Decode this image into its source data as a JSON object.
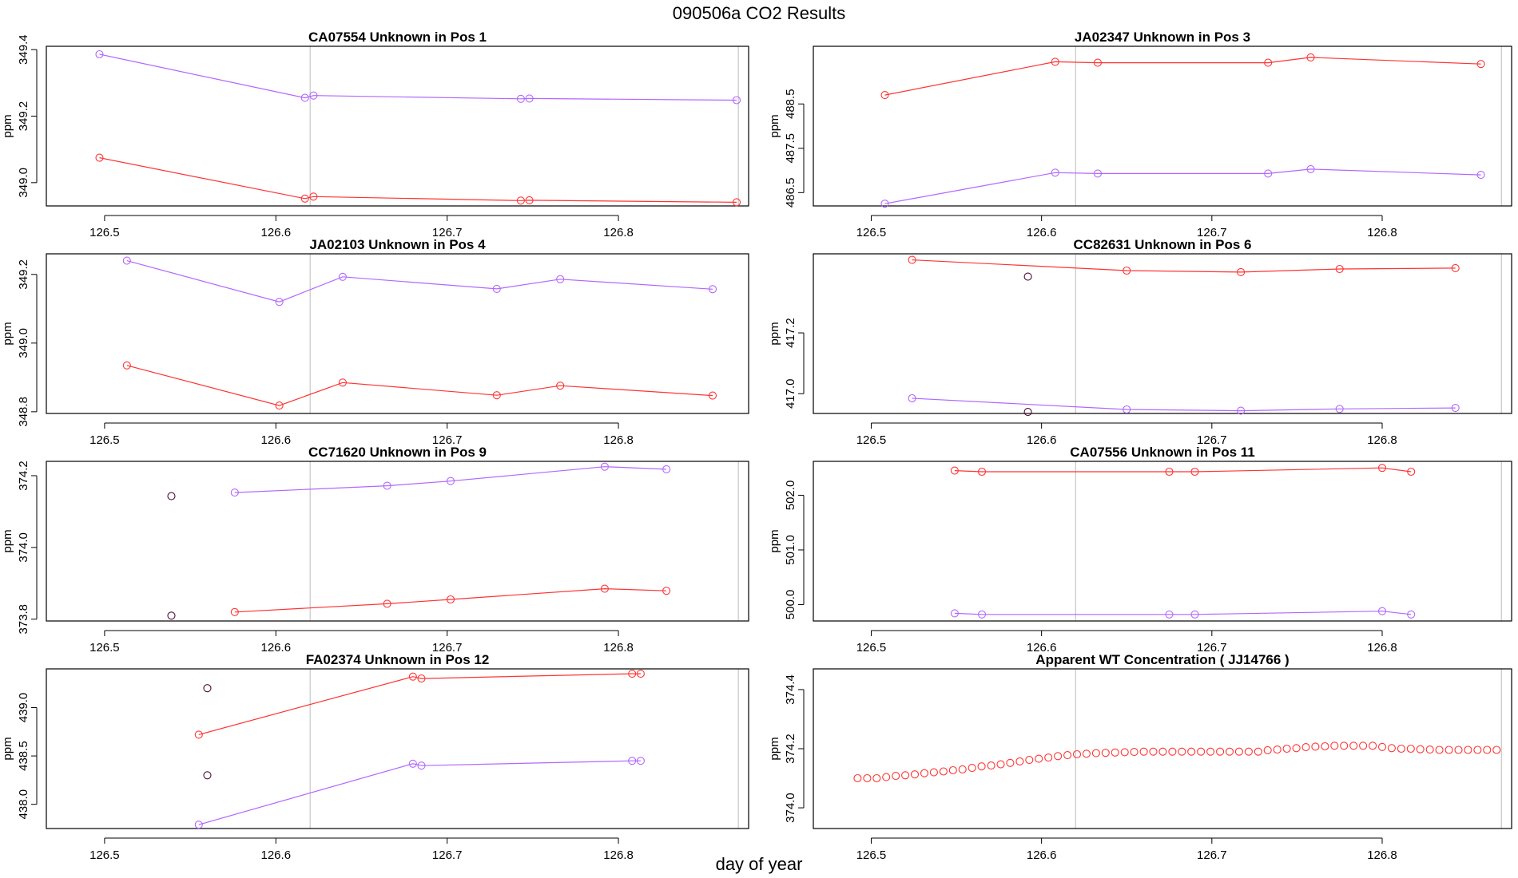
{
  "figure": {
    "title": "090506a  CO2 Results",
    "xlabel": "day of year"
  },
  "colors": {
    "red": "#ff3333",
    "purple": "#b266ff",
    "dark": "#4a0a33",
    "vline": "#bbbbbb",
    "frame": "#000000"
  },
  "chart_data": [
    {
      "type": "line",
      "title": "CA07554    Unknown in Pos 1",
      "ylabel": "ppm",
      "xlim": [
        126.466,
        126.876
      ],
      "ylim": [
        348.93,
        349.41
      ],
      "xticks": [
        126.5,
        126.6,
        126.7,
        126.8
      ],
      "xtick_labels": [
        "126.5",
        "126.6",
        "126.7",
        "126.8"
      ],
      "yticks": [
        349.0,
        349.2,
        349.4
      ],
      "ytick_labels": [
        "349.0",
        "349.2",
        "349.4"
      ],
      "vlines": [
        126.62,
        126.87
      ],
      "series": [
        {
          "name": "red",
          "color": "red",
          "connected": true,
          "x": [
            126.497,
            126.617,
            126.622,
            126.743,
            126.748,
            126.869
          ],
          "y": [
            349.075,
            348.952,
            348.958,
            348.946,
            348.947,
            348.941
          ]
        },
        {
          "name": "purple",
          "color": "purple",
          "connected": true,
          "x": [
            126.497,
            126.617,
            126.622,
            126.743,
            126.748,
            126.869
          ],
          "y": [
            349.386,
            349.255,
            349.262,
            349.252,
            349.253,
            349.248
          ]
        }
      ]
    },
    {
      "type": "line",
      "title": "JA02347    Unknown in Pos 3",
      "ylabel": "ppm",
      "xlim": [
        126.466,
        126.876
      ],
      "ylim": [
        486.2,
        489.8
      ],
      "xticks": [
        126.5,
        126.6,
        126.7,
        126.8
      ],
      "xtick_labels": [
        "126.5",
        "126.6",
        "126.7",
        "126.8"
      ],
      "yticks": [
        486.5,
        487.5,
        488.5
      ],
      "ytick_labels": [
        "486.5",
        "487.5",
        "488.5"
      ],
      "vlines": [
        126.62,
        126.87
      ],
      "series": [
        {
          "name": "red",
          "color": "red",
          "connected": true,
          "x": [
            126.508,
            126.608,
            126.633,
            126.733,
            126.758,
            126.858
          ],
          "y": [
            488.7,
            489.45,
            489.43,
            489.43,
            489.55,
            489.4
          ]
        },
        {
          "name": "purple",
          "color": "purple",
          "connected": true,
          "x": [
            126.508,
            126.608,
            126.633,
            126.733,
            126.758,
            126.858
          ],
          "y": [
            486.25,
            486.95,
            486.93,
            486.93,
            487.03,
            486.9
          ]
        }
      ]
    },
    {
      "type": "line",
      "title": "JA02103    Unknown in Pos 4",
      "ylabel": "ppm",
      "xlim": [
        126.466,
        126.876
      ],
      "ylim": [
        348.795,
        349.26
      ],
      "xticks": [
        126.5,
        126.6,
        126.7,
        126.8
      ],
      "xtick_labels": [
        "126.5",
        "126.6",
        "126.7",
        "126.8"
      ],
      "yticks": [
        348.8,
        349.0,
        349.2
      ],
      "ytick_labels": [
        "348.8",
        "349.0",
        "349.2"
      ],
      "vlines": [
        126.62
      ],
      "series": [
        {
          "name": "red",
          "color": "red",
          "connected": true,
          "x": [
            126.513,
            126.602,
            126.639,
            126.729,
            126.766,
            126.855
          ],
          "y": [
            348.935,
            348.818,
            348.885,
            348.848,
            348.876,
            348.847
          ]
        },
        {
          "name": "purple",
          "color": "purple",
          "connected": true,
          "x": [
            126.513,
            126.602,
            126.639,
            126.729,
            126.766,
            126.855
          ],
          "y": [
            349.24,
            349.12,
            349.193,
            349.158,
            349.186,
            349.157
          ]
        }
      ]
    },
    {
      "type": "line",
      "title": "CC82631    Unknown in Pos 6",
      "ylabel": "ppm",
      "xlim": [
        126.466,
        126.876
      ],
      "ylim": [
        416.935,
        417.46
      ],
      "xticks": [
        126.5,
        126.6,
        126.7,
        126.8
      ],
      "xtick_labels": [
        "126.5",
        "126.6",
        "126.7",
        "126.8"
      ],
      "yticks": [
        417.0,
        417.2
      ],
      "ytick_labels": [
        "417.0",
        "417.2"
      ],
      "vlines": [
        126.62,
        126.87
      ],
      "series": [
        {
          "name": "red",
          "color": "red",
          "connected": true,
          "x": [
            126.524,
            126.65,
            126.717,
            126.775,
            126.843
          ],
          "y": [
            417.44,
            417.405,
            417.4,
            417.41,
            417.413
          ]
        },
        {
          "name": "purple",
          "color": "purple",
          "connected": true,
          "x": [
            126.524,
            126.65,
            126.717,
            126.775,
            126.843
          ],
          "y": [
            416.985,
            416.948,
            416.944,
            416.95,
            416.953
          ]
        },
        {
          "name": "flag-red",
          "color": "dark",
          "connected": false,
          "x": [
            126.592
          ],
          "y": [
            417.385
          ]
        },
        {
          "name": "flag-purple",
          "color": "dark",
          "connected": false,
          "x": [
            126.592
          ],
          "y": [
            416.94
          ]
        }
      ]
    },
    {
      "type": "line",
      "title": "CC71620    Unknown in Pos 9",
      "ylabel": "ppm",
      "xlim": [
        126.466,
        126.876
      ],
      "ylim": [
        373.795,
        374.24
      ],
      "xticks": [
        126.5,
        126.6,
        126.7,
        126.8
      ],
      "xtick_labels": [
        "126.5",
        "126.6",
        "126.7",
        "126.8"
      ],
      "yticks": [
        373.8,
        374.0,
        374.2
      ],
      "ytick_labels": [
        "373.8",
        "374.0",
        "374.2"
      ],
      "vlines": [
        126.62,
        126.87
      ],
      "series": [
        {
          "name": "red",
          "color": "red",
          "connected": true,
          "x": [
            126.576,
            126.665,
            126.702,
            126.792,
            126.828
          ],
          "y": [
            373.82,
            373.843,
            373.855,
            373.885,
            373.879
          ]
        },
        {
          "name": "purple",
          "color": "purple",
          "connected": true,
          "x": [
            126.576,
            126.665,
            126.702,
            126.792,
            126.828
          ],
          "y": [
            374.153,
            374.172,
            374.185,
            374.225,
            374.218
          ]
        },
        {
          "name": "flag-red",
          "color": "dark",
          "connected": false,
          "x": [
            126.539
          ],
          "y": [
            373.81
          ]
        },
        {
          "name": "flag-purple",
          "color": "dark",
          "connected": false,
          "x": [
            126.539
          ],
          "y": [
            374.143
          ]
        }
      ]
    },
    {
      "type": "line",
      "title": "CA07556    Unknown in Pos 11",
      "ylabel": "ppm",
      "xlim": [
        126.466,
        126.876
      ],
      "ylim": [
        499.7,
        502.62
      ],
      "xticks": [
        126.5,
        126.6,
        126.7,
        126.8
      ],
      "xtick_labels": [
        "126.5",
        "126.6",
        "126.7",
        "126.8"
      ],
      "yticks": [
        500.0,
        501.0,
        502.0
      ],
      "ytick_labels": [
        "500.0",
        "501.0",
        "502.0"
      ],
      "vlines": [
        126.62,
        126.87
      ],
      "series": [
        {
          "name": "red",
          "color": "red",
          "connected": true,
          "x": [
            126.549,
            126.565,
            126.675,
            126.69,
            126.8,
            126.817
          ],
          "y": [
            502.45,
            502.43,
            502.43,
            502.43,
            502.5,
            502.43
          ]
        },
        {
          "name": "purple",
          "color": "purple",
          "connected": true,
          "x": [
            126.549,
            126.565,
            126.675,
            126.69,
            126.8,
            126.817
          ],
          "y": [
            499.84,
            499.82,
            499.82,
            499.82,
            499.88,
            499.82
          ]
        }
      ]
    },
    {
      "type": "line",
      "title": "FA02374    Unknown in Pos 12",
      "ylabel": "ppm",
      "xlim": [
        126.466,
        126.876
      ],
      "ylim": [
        437.75,
        439.4
      ],
      "xticks": [
        126.5,
        126.6,
        126.7,
        126.8
      ],
      "xtick_labels": [
        "126.5",
        "126.6",
        "126.7",
        "126.8"
      ],
      "yticks": [
        438.0,
        438.5,
        439.0
      ],
      "ytick_labels": [
        "438.0",
        "438.5",
        "439.0"
      ],
      "vlines": [
        126.62,
        126.87
      ],
      "series": [
        {
          "name": "red",
          "color": "red",
          "connected": true,
          "x": [
            126.555,
            126.68,
            126.685,
            126.808,
            126.813
          ],
          "y": [
            438.72,
            439.32,
            439.3,
            439.35,
            439.35
          ]
        },
        {
          "name": "purple",
          "color": "purple",
          "connected": true,
          "x": [
            126.555,
            126.68,
            126.685,
            126.808,
            126.813
          ],
          "y": [
            437.79,
            438.42,
            438.4,
            438.45,
            438.45
          ]
        },
        {
          "name": "flag-red",
          "color": "dark",
          "connected": false,
          "x": [
            126.56
          ],
          "y": [
            439.2
          ]
        },
        {
          "name": "flag-purple",
          "color": "dark",
          "connected": false,
          "x": [
            126.56
          ],
          "y": [
            438.3
          ]
        }
      ]
    },
    {
      "type": "scatter",
      "title": "Apparent WT Concentration ( JJ14766 )",
      "ylabel": "ppm",
      "xlim": [
        126.466,
        126.876
      ],
      "ylim": [
        373.93,
        374.47
      ],
      "xticks": [
        126.5,
        126.6,
        126.7,
        126.8
      ],
      "xtick_labels": [
        "126.5",
        "126.6",
        "126.7",
        "126.8"
      ],
      "yticks": [
        374.0,
        374.2,
        374.4
      ],
      "ytick_labels": [
        "374.0",
        "374.2",
        "374.4"
      ],
      "vlines": [
        126.62,
        126.87
      ],
      "series": [
        {
          "name": "red",
          "color": "red",
          "connected": false,
          "x": [
            126.492,
            126.4976,
            126.5032,
            126.5088,
            126.5144,
            126.52,
            126.5256,
            126.5312,
            126.5368,
            126.5424,
            126.548,
            126.5536,
            126.5592,
            126.5648,
            126.5704,
            126.576,
            126.5816,
            126.5872,
            126.5928,
            126.5984,
            126.604,
            126.6096,
            126.6152,
            126.6208,
            126.6264,
            126.632,
            126.6376,
            126.6432,
            126.6488,
            126.6544,
            126.66,
            126.6656,
            126.6712,
            126.6768,
            126.6824,
            126.688,
            126.6936,
            126.6992,
            126.7048,
            126.7104,
            126.716,
            126.7216,
            126.7272,
            126.7328,
            126.7384,
            126.744,
            126.7496,
            126.7552,
            126.7608,
            126.7664,
            126.772,
            126.7776,
            126.7832,
            126.7888,
            126.7944,
            126.8,
            126.8056,
            126.8112,
            126.8168,
            126.8224,
            126.828,
            126.8336,
            126.8392,
            126.8448,
            126.8504,
            126.856,
            126.8616,
            126.8672
          ],
          "y": [
            374.1,
            374.1,
            374.1,
            374.104,
            374.108,
            374.11,
            374.113,
            374.117,
            374.12,
            374.123,
            374.127,
            374.13,
            374.135,
            374.14,
            374.143,
            374.147,
            374.152,
            374.157,
            374.162,
            374.166,
            374.17,
            374.175,
            374.178,
            374.181,
            374.183,
            374.185,
            374.186,
            374.187,
            374.188,
            374.189,
            374.19,
            374.19,
            374.19,
            374.19,
            374.19,
            374.19,
            374.19,
            374.19,
            374.19,
            374.19,
            374.19,
            374.19,
            374.19,
            374.195,
            374.197,
            374.2,
            374.202,
            374.205,
            374.207,
            374.208,
            374.21,
            374.21,
            374.21,
            374.21,
            374.21,
            374.206,
            374.202,
            374.2,
            374.2,
            374.198,
            374.197,
            374.196,
            374.196,
            374.196,
            374.196,
            374.196,
            374.196,
            374.196
          ]
        }
      ]
    }
  ]
}
